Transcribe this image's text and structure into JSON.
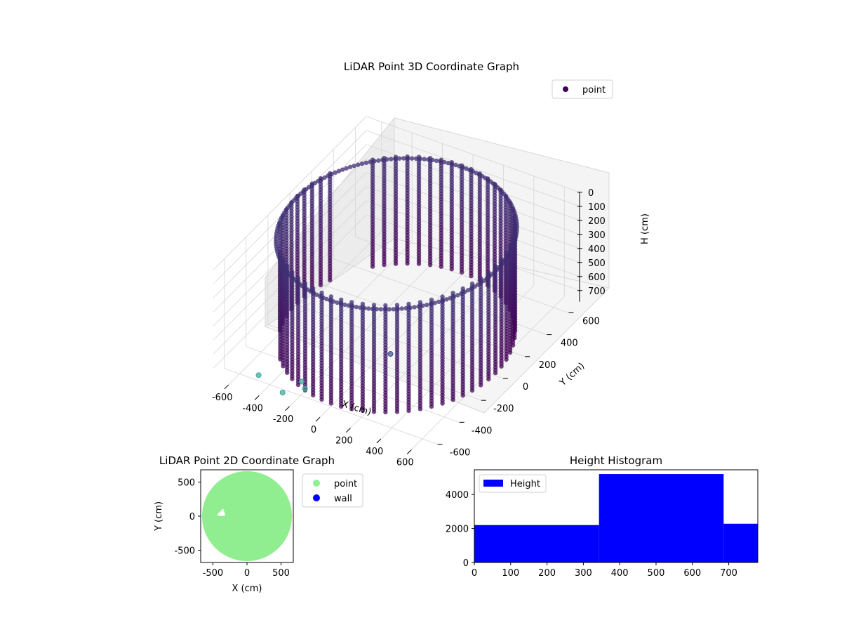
{
  "chart_data": [
    {
      "type": "scatter",
      "projection": "3d",
      "title": "LiDAR Point 3D Coordinate Graph",
      "xlabel": "X (cm)",
      "ylabel": "Y (cm)",
      "zlabel": "H (cm)",
      "x_ticks": [
        "-600",
        "-400",
        "-200",
        "0",
        "200",
        "400",
        "600"
      ],
      "y_ticks": [
        "-600",
        "-400",
        "-200",
        "0",
        "200",
        "400",
        "600"
      ],
      "z_ticks": [
        "0",
        "100",
        "200",
        "300",
        "400",
        "500",
        "600",
        "700"
      ],
      "xlim": [
        -700,
        700
      ],
      "ylim": [
        -700,
        700
      ],
      "zlim": [
        0,
        780
      ],
      "z_axis_inverted": true,
      "grid": true,
      "legend": {
        "placement": "top-right",
        "entries": [
          "point"
        ]
      },
      "series": [
        {
          "name": "point",
          "color_map": "viridis",
          "shape": "cylindrical scan shell",
          "radius_cm": 650,
          "height_range_cm": [
            0,
            780
          ],
          "points": [
            {
              "x": -460,
              "y": -620,
              "h": 720
            },
            {
              "x": -220,
              "y": -560,
              "h": 720
            },
            {
              "x": -170,
              "y": -600,
              "h": 720
            },
            {
              "x": -260,
              "y": -680,
              "h": 720
            },
            {
              "x": 90,
              "y": -180,
              "h": 700
            }
          ]
        }
      ],
      "colors": {
        "dark": "#440154",
        "mid": "#3b528b",
        "teal": "#3aa89a",
        "light": "#6cc9a8"
      }
    },
    {
      "type": "scatter",
      "title": "LiDAR Point 2D Coordinate Graph",
      "xlabel": "X (cm)",
      "ylabel": "Y (cm)",
      "x_ticks": [
        "-500",
        "0",
        "500"
      ],
      "y_ticks": [
        "-500",
        "0",
        "500"
      ],
      "xlim": [
        -680,
        680
      ],
      "ylim": [
        -680,
        680
      ],
      "legend": {
        "placement": "outside-right",
        "entries": [
          "point",
          "wall"
        ]
      },
      "series": [
        {
          "name": "point",
          "color": "#90ee90",
          "radius_cm": 660,
          "gap_near": {
            "x": -380,
            "y": 50
          }
        },
        {
          "name": "wall",
          "color": "#0000ff",
          "points": []
        }
      ]
    },
    {
      "type": "bar",
      "subtype": "histogram",
      "title": "Height Histogram",
      "x_ticks": [
        "0",
        "100",
        "200",
        "300",
        "400",
        "500",
        "600",
        "700"
      ],
      "y_ticks": [
        "0",
        "2000",
        "4000"
      ],
      "xlim": [
        0,
        780
      ],
      "ylim": [
        0,
        5450
      ],
      "legend": {
        "placement": "top-left",
        "entries": [
          "Height"
        ]
      },
      "series": [
        {
          "name": "Height",
          "color": "#0000ff",
          "bins": [
            {
              "from": 0,
              "to": 343,
              "count": 2200
            },
            {
              "from": 343,
              "to": 686,
              "count": 5200
            },
            {
              "from": 686,
              "to": 780,
              "count": 2280
            }
          ]
        }
      ]
    }
  ]
}
